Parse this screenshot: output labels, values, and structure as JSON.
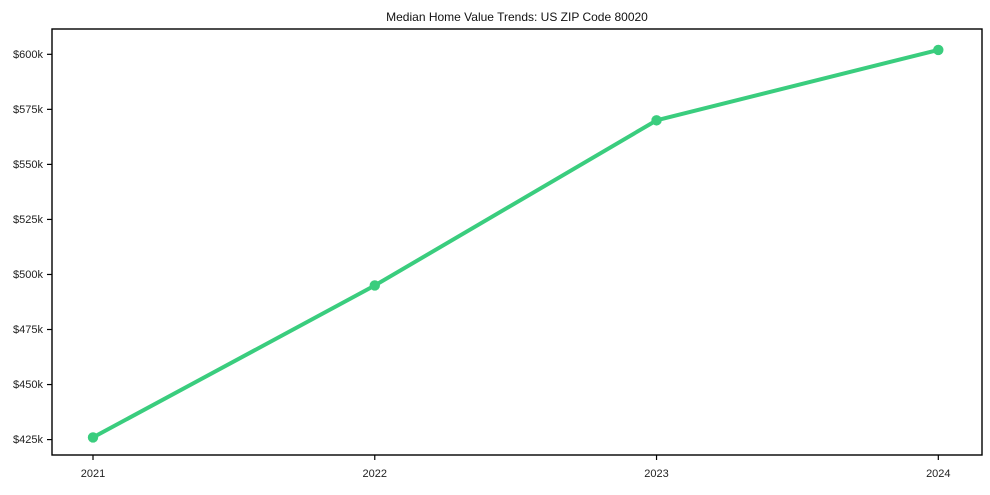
{
  "chart_data": {
    "type": "line",
    "title": "Median Home Value Trends: US ZIP Code 80020",
    "x": [
      "2021",
      "2022",
      "2023",
      "2024"
    ],
    "values": [
      426000,
      495000,
      570000,
      602000
    ],
    "xlabel": "",
    "ylabel": "",
    "y_tick_values": [
      425000,
      450000,
      475000,
      500000,
      525000,
      550000,
      575000,
      600000
    ],
    "y_tick_labels": [
      "$425k",
      "$450k",
      "$475k",
      "$500k",
      "$525k",
      "$550k",
      "$575k",
      "$600k"
    ],
    "ylim": [
      418000,
      611500
    ],
    "grid": false,
    "legend_position": "none",
    "line_color": "#3acd7e",
    "marker": "circle",
    "axis_color": "#000000",
    "text_color": "#222222",
    "background_color": "#ffffff"
  }
}
